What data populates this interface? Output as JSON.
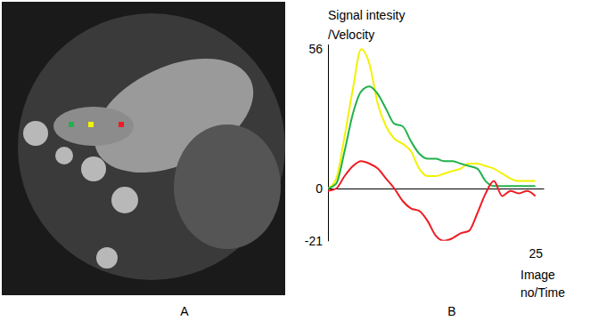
{
  "image": {
    "label": "A"
  },
  "chart_data": {
    "type": "line",
    "title": "B",
    "y_label": [
      "Signal intesity",
      "/Velocity"
    ],
    "x_label": [
      "Image",
      "no/Time"
    ],
    "x": [
      0,
      1,
      2,
      3,
      4,
      5,
      6,
      7,
      8,
      9,
      10,
      11,
      12,
      13,
      14,
      15,
      16,
      17,
      18,
      19,
      20,
      21,
      22,
      23,
      24,
      25
    ],
    "xlim": [
      0,
      26
    ],
    "xticks": [
      25
    ],
    "ylim": [
      -21,
      58
    ],
    "yticks": [
      -21,
      0,
      56
    ],
    "grid": false,
    "series": [
      {
        "color": "#f2f200",
        "values": [
          0,
          4,
          21,
          40,
          56,
          50,
          34,
          25,
          20,
          18,
          15,
          8,
          5,
          5,
          6,
          7,
          8,
          10,
          10,
          9,
          8,
          6,
          4,
          3,
          3,
          3
        ]
      },
      {
        "color": "#22b14c",
        "values": [
          0,
          2,
          15,
          30,
          39,
          41,
          38,
          32,
          26,
          25,
          19,
          14,
          12,
          12,
          11,
          11,
          10,
          9,
          8,
          3,
          1,
          1,
          1,
          1,
          1,
          1
        ]
      },
      {
        "color": "#ee1c24",
        "values": [
          -1,
          0,
          5,
          9,
          11,
          10,
          8,
          4,
          0,
          -5,
          -8,
          -9,
          -13,
          -19,
          -21,
          -20,
          -18,
          -17,
          -10,
          -2,
          3,
          -3,
          -1,
          -2,
          -1,
          -3
        ]
      }
    ]
  }
}
